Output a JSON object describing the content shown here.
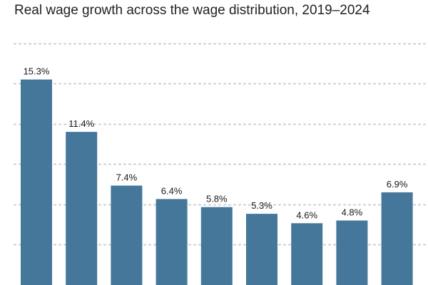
{
  "chart_data": {
    "type": "bar",
    "title": "Real wage growth across the wage distribution, 2019–2024",
    "xlabel": "",
    "ylabel": "",
    "categories": [
      "",
      "",
      "",
      "",
      "",
      "",
      "",
      "",
      ""
    ],
    "values": [
      15.3,
      11.4,
      7.4,
      6.4,
      5.8,
      5.3,
      4.6,
      4.8,
      6.9
    ],
    "value_labels": [
      "15.3%",
      "11.4%",
      "7.4%",
      "6.4%",
      "5.8%",
      "5.3%",
      "4.6%",
      "4.8%",
      "6.9%"
    ],
    "ylim": [
      0,
      18
    ],
    "grid": true,
    "bar_color": "#44779a",
    "grid_color": "#cccccc"
  }
}
